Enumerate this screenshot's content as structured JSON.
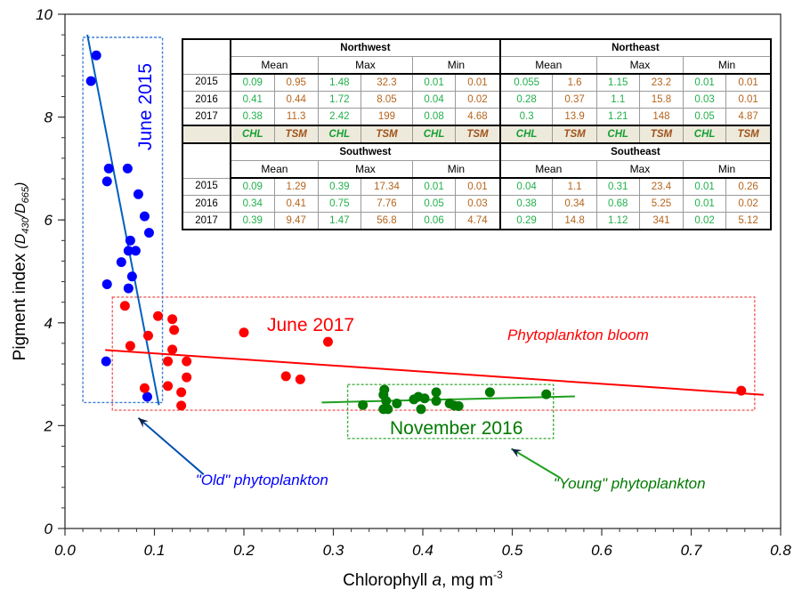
{
  "chart_data": {
    "type": "scatter",
    "xlabel": "Chlorophyll a, mg m-3",
    "xlabel_parts": [
      "Chlorophyll ",
      "a",
      ", mg m",
      "-3"
    ],
    "ylabel": "Pigment index (D430/D665)",
    "ylabel_parts": [
      "Pigment index ",
      "(D",
      "430",
      "/D",
      "665",
      ")"
    ],
    "xlim": [
      0.0,
      0.8
    ],
    "ylim": [
      0,
      10
    ],
    "x_ticks": [
      "0.0",
      "0.1",
      "0.2",
      "0.3",
      "0.4",
      "0.5",
      "0.6",
      "0.7",
      "0.8"
    ],
    "y_ticks": [
      "0",
      "2",
      "4",
      "6",
      "8",
      "10"
    ],
    "grid": false,
    "series": [
      {
        "name": "June 2015",
        "color": "#0000ff",
        "line_color": "#0060c0",
        "points": [
          [
            0.035,
            9.2
          ],
          [
            0.029,
            8.7
          ],
          [
            0.049,
            7.0
          ],
          [
            0.07,
            7.0
          ],
          [
            0.047,
            6.75
          ],
          [
            0.082,
            6.5
          ],
          [
            0.089,
            6.07
          ],
          [
            0.094,
            5.75
          ],
          [
            0.073,
            5.6
          ],
          [
            0.071,
            5.4
          ],
          [
            0.079,
            5.4
          ],
          [
            0.063,
            5.18
          ],
          [
            0.075,
            4.9
          ],
          [
            0.047,
            4.75
          ],
          [
            0.071,
            4.67
          ],
          [
            0.046,
            3.25
          ],
          [
            0.092,
            2.56
          ]
        ],
        "trend": [
          [
            0.025,
            9.6
          ],
          [
            0.105,
            2.4
          ]
        ],
        "box": {
          "x": [
            0.02,
            0.109
          ],
          "y": [
            2.45,
            9.55
          ]
        },
        "label": "June 2015"
      },
      {
        "name": "June 2017",
        "color": "#ff0000",
        "line_color": "#ff0000",
        "points": [
          [
            0.067,
            4.33
          ],
          [
            0.104,
            4.13
          ],
          [
            0.12,
            4.07
          ],
          [
            0.122,
            3.86
          ],
          [
            0.093,
            3.75
          ],
          [
            0.073,
            3.55
          ],
          [
            0.12,
            3.48
          ],
          [
            0.115,
            3.25
          ],
          [
            0.136,
            3.25
          ],
          [
            0.136,
            2.94
          ],
          [
            0.115,
            2.77
          ],
          [
            0.089,
            2.73
          ],
          [
            0.13,
            2.65
          ],
          [
            0.13,
            2.39
          ],
          [
            0.2,
            3.81
          ],
          [
            0.294,
            3.63
          ],
          [
            0.247,
            2.96
          ],
          [
            0.263,
            2.9
          ],
          [
            0.756,
            2.68
          ]
        ],
        "trend": [
          [
            0.045,
            3.47
          ],
          [
            0.781,
            2.6
          ]
        ],
        "box": {
          "x": [
            0.053,
            0.771
          ],
          "y": [
            2.3,
            4.5
          ]
        },
        "label": "June 2017",
        "annotation": "Phytoplankton bloom"
      },
      {
        "name": "November 2016",
        "color": "#007a00",
        "line_color": "#1ea01e",
        "points": [
          [
            0.333,
            2.4
          ],
          [
            0.357,
            2.7
          ],
          [
            0.356,
            2.6
          ],
          [
            0.359,
            2.48
          ],
          [
            0.356,
            2.32
          ],
          [
            0.361,
            2.32
          ],
          [
            0.371,
            2.43
          ],
          [
            0.39,
            2.51
          ],
          [
            0.395,
            2.56
          ],
          [
            0.398,
            2.32
          ],
          [
            0.402,
            2.53
          ],
          [
            0.415,
            2.65
          ],
          [
            0.415,
            2.48
          ],
          [
            0.43,
            2.43
          ],
          [
            0.435,
            2.39
          ],
          [
            0.44,
            2.38
          ],
          [
            0.475,
            2.65
          ],
          [
            0.538,
            2.61
          ]
        ],
        "trend": [
          [
            0.287,
            2.45
          ],
          [
            0.57,
            2.57
          ]
        ],
        "box": {
          "x": [
            0.316,
            0.546
          ],
          "y": [
            1.75,
            2.8
          ]
        },
        "label": "November 2016"
      }
    ],
    "annotations": [
      {
        "text": "\"Old\" phytoplankton",
        "color": "#0000ff",
        "arrow_color": "#0050b0",
        "from": [
          0.155,
          1.05
        ],
        "to": [
          0.082,
          2.15
        ],
        "at": [
          0.146,
          0.85
        ]
      },
      {
        "text": "\"Young\" phytoplankton",
        "color": "#007a00",
        "arrow_color": "#1ea01e",
        "from": [
          0.554,
          0.98
        ],
        "to": [
          0.499,
          1.55
        ],
        "at": [
          0.546,
          0.78
        ]
      }
    ]
  },
  "table": {
    "col_header_stats": [
      "Mean",
      "Max",
      "Min"
    ],
    "var_labels": [
      "CHL",
      "TSM",
      "CHL",
      "TSM",
      "CHL",
      "TSM",
      "CHL",
      "TSM",
      "CHL",
      "TSM",
      "CHL",
      "TSM"
    ],
    "blocks": [
      {
        "regions": [
          "Northwest",
          "Northeast"
        ],
        "rows": [
          {
            "year": "2015",
            "values": [
              "0.09",
              "0.95",
              "1.48",
              "32.3",
              "0.01",
              "0.01",
              "0.055",
              "1.6",
              "1.15",
              "23.2",
              "0.01",
              "0.01"
            ]
          },
          {
            "year": "2016",
            "values": [
              "0.41",
              "0.44",
              "1.72",
              "8.05",
              "0.04",
              "0.02",
              "0.28",
              "0.37",
              "1.1",
              "15.8",
              "0.03",
              "0.01"
            ]
          },
          {
            "year": "2017",
            "values": [
              "0.38",
              "11.3",
              "2.42",
              "199",
              "0.08",
              "4.68",
              "0.3",
              "13.9",
              "1.21",
              "148",
              "0.05",
              "4.87"
            ]
          }
        ]
      },
      {
        "regions": [
          "Southwest",
          "Southeast"
        ],
        "rows": [
          {
            "year": "2015",
            "values": [
              "0.09",
              "1.29",
              "0.39",
              "17.34",
              "0.01",
              "0.01",
              "0.04",
              "1.1",
              "0.31",
              "23.4",
              "0.01",
              "0.26"
            ]
          },
          {
            "year": "2016",
            "values": [
              "0.34",
              "0.41",
              "0.75",
              "7.76",
              "0.05",
              "0.03",
              "0.38",
              "0.34",
              "0.68",
              "5.25",
              "0.01",
              "0.02"
            ]
          },
          {
            "year": "2017",
            "values": [
              "0.39",
              "9.47",
              "1.47",
              "56.8",
              "0.06",
              "4.74",
              "0.29",
              "14.8",
              "1.12",
              "341",
              "0.02",
              "5.12"
            ]
          }
        ]
      }
    ]
  }
}
